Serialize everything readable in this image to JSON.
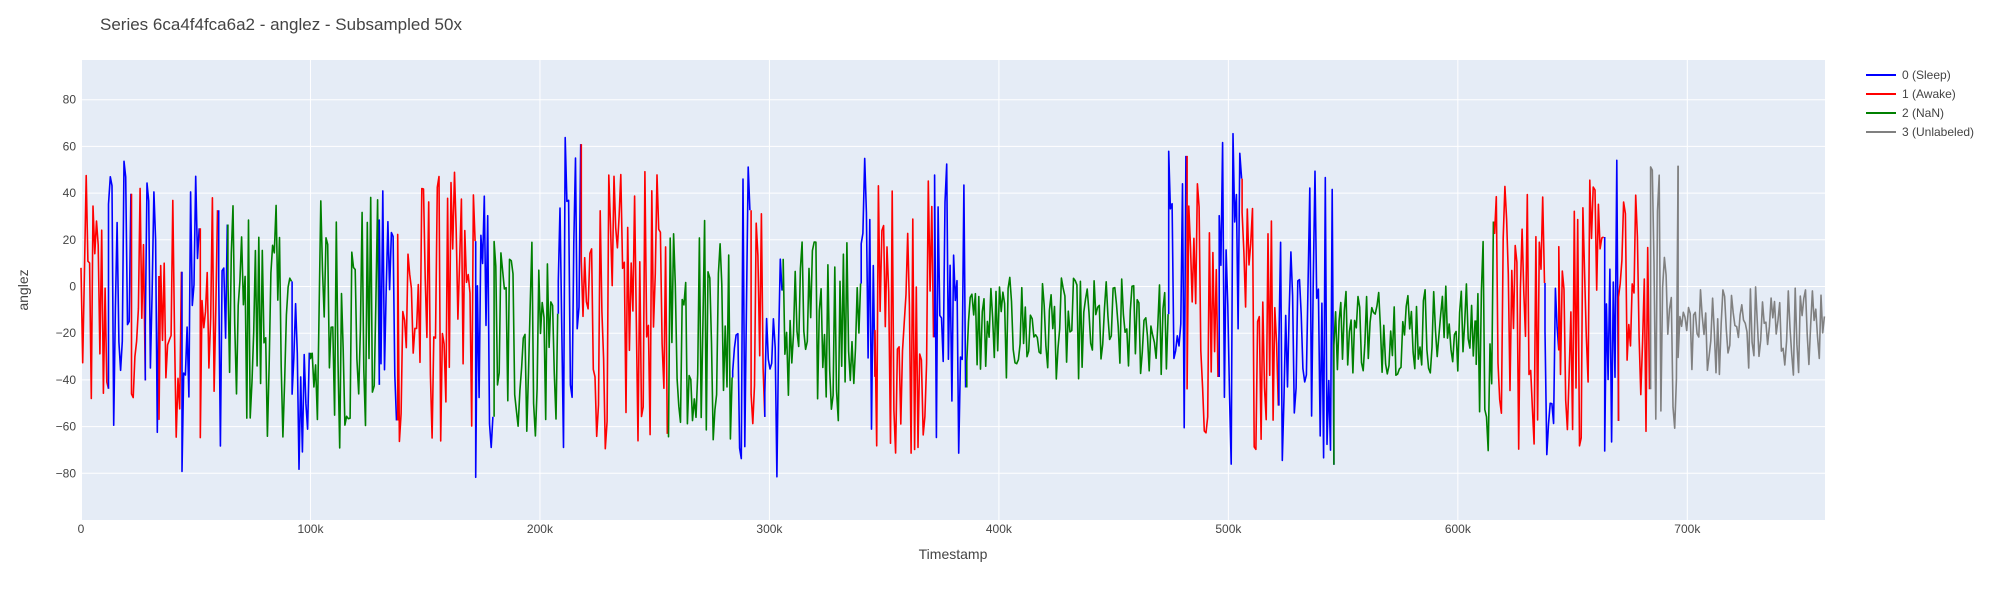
{
  "chart_data": {
    "type": "line",
    "title": "Series 6ca4f4fca6a2 - anglez - Subsampled 50x",
    "xlabel": "Timestamp",
    "ylabel": "anglez",
    "xlim": [
      0,
      760000
    ],
    "ylim": [
      -100,
      97
    ],
    "x_ticks": [
      {
        "value": 0,
        "label": "0"
      },
      {
        "value": 100000,
        "label": "100k"
      },
      {
        "value": 200000,
        "label": "200k"
      },
      {
        "value": 300000,
        "label": "300k"
      },
      {
        "value": 400000,
        "label": "400k"
      },
      {
        "value": 500000,
        "label": "500k"
      },
      {
        "value": 600000,
        "label": "600k"
      },
      {
        "value": 700000,
        "label": "700k"
      }
    ],
    "y_ticks": [
      {
        "value": 80,
        "label": "80"
      },
      {
        "value": 60,
        "label": "60"
      },
      {
        "value": 40,
        "label": "40"
      },
      {
        "value": 20,
        "label": "20"
      },
      {
        "value": 0,
        "label": "0"
      },
      {
        "value": -20,
        "label": "−20"
      },
      {
        "value": -40,
        "label": "−40"
      },
      {
        "value": -60,
        "label": "−60"
      },
      {
        "value": -80,
        "label": "−80"
      }
    ],
    "grid": true,
    "legend_position": "top-right",
    "series": [
      {
        "name": "0 (Sleep)",
        "color": "#0000ff"
      },
      {
        "name": "1 (Awake)",
        "color": "#ff0000"
      },
      {
        "name": "2 (NaN)",
        "color": "#008000"
      },
      {
        "name": "3 (Unlabeled)",
        "color": "#808080"
      }
    ],
    "segments": [
      {
        "series": 1,
        "x_start": 0,
        "x_end": 12000,
        "mean": -10,
        "amplitude": 58
      },
      {
        "series": 0,
        "x_start": 12000,
        "x_end": 22000,
        "mean": -5,
        "amplitude": 70
      },
      {
        "series": 1,
        "x_start": 22000,
        "x_end": 28000,
        "mean": -10,
        "amplitude": 55
      },
      {
        "series": 0,
        "x_start": 28000,
        "x_end": 34000,
        "mean": -8,
        "amplitude": 70
      },
      {
        "series": 1,
        "x_start": 34000,
        "x_end": 44000,
        "mean": -12,
        "amplitude": 55
      },
      {
        "series": 0,
        "x_start": 44000,
        "x_end": 52000,
        "mean": -5,
        "amplitude": 75
      },
      {
        "series": 1,
        "x_start": 52000,
        "x_end": 60000,
        "mean": -12,
        "amplitude": 55
      },
      {
        "series": 0,
        "x_start": 60000,
        "x_end": 64000,
        "mean": -10,
        "amplitude": 60
      },
      {
        "series": 2,
        "x_start": 64000,
        "x_end": 92000,
        "mean": -15,
        "amplitude": 50
      },
      {
        "series": 0,
        "x_start": 92000,
        "x_end": 100000,
        "mean": -45,
        "amplitude": 45
      },
      {
        "series": 2,
        "x_start": 100000,
        "x_end": 130000,
        "mean": -15,
        "amplitude": 55
      },
      {
        "series": 0,
        "x_start": 130000,
        "x_end": 138000,
        "mean": -5,
        "amplitude": 72
      },
      {
        "series": 1,
        "x_start": 138000,
        "x_end": 172000,
        "mean": -10,
        "amplitude": 60
      },
      {
        "series": 0,
        "x_start": 172000,
        "x_end": 180000,
        "mean": -20,
        "amplitude": 65
      },
      {
        "series": 2,
        "x_start": 180000,
        "x_end": 208000,
        "mean": -20,
        "amplitude": 48
      },
      {
        "series": 0,
        "x_start": 208000,
        "x_end": 218000,
        "mean": -5,
        "amplitude": 70
      },
      {
        "series": 1,
        "x_start": 218000,
        "x_end": 256000,
        "mean": -10,
        "amplitude": 60
      },
      {
        "series": 2,
        "x_start": 256000,
        "x_end": 284000,
        "mean": -15,
        "amplitude": 52
      },
      {
        "series": 0,
        "x_start": 284000,
        "x_end": 292000,
        "mean": -10,
        "amplitude": 70
      },
      {
        "series": 1,
        "x_start": 292000,
        "x_end": 298000,
        "mean": -15,
        "amplitude": 50
      },
      {
        "series": 0,
        "x_start": 298000,
        "x_end": 306000,
        "mean": -30,
        "amplitude": 55
      },
      {
        "series": 2,
        "x_start": 306000,
        "x_end": 340000,
        "mean": -18,
        "amplitude": 40
      },
      {
        "series": 0,
        "x_start": 340000,
        "x_end": 346000,
        "mean": -5,
        "amplitude": 70
      },
      {
        "series": 1,
        "x_start": 346000,
        "x_end": 372000,
        "mean": -12,
        "amplitude": 60
      },
      {
        "series": 0,
        "x_start": 372000,
        "x_end": 386000,
        "mean": -5,
        "amplitude": 70
      },
      {
        "series": 2,
        "x_start": 386000,
        "x_end": 474000,
        "mean": -18,
        "amplitude": 22
      },
      {
        "series": 0,
        "x_start": 474000,
        "x_end": 482000,
        "mean": -5,
        "amplitude": 72
      },
      {
        "series": 1,
        "x_start": 482000,
        "x_end": 496000,
        "mean": -12,
        "amplitude": 60
      },
      {
        "series": 0,
        "x_start": 496000,
        "x_end": 506000,
        "mean": -5,
        "amplitude": 75
      },
      {
        "series": 1,
        "x_start": 506000,
        "x_end": 522000,
        "mean": -12,
        "amplitude": 58
      },
      {
        "series": 0,
        "x_start": 522000,
        "x_end": 546000,
        "mean": -10,
        "amplitude": 68
      },
      {
        "series": 2,
        "x_start": 546000,
        "x_end": 608000,
        "mean": -18,
        "amplitude": 20
      },
      {
        "series": 2,
        "x_start": 608000,
        "x_end": 616000,
        "mean": -20,
        "amplitude": 55
      },
      {
        "series": 1,
        "x_start": 616000,
        "x_end": 638000,
        "mean": -12,
        "amplitude": 60
      },
      {
        "series": 0,
        "x_start": 638000,
        "x_end": 644000,
        "mean": -5,
        "amplitude": 70
      },
      {
        "series": 1,
        "x_start": 644000,
        "x_end": 664000,
        "mean": -12,
        "amplitude": 58
      },
      {
        "series": 0,
        "x_start": 664000,
        "x_end": 670000,
        "mean": -8,
        "amplitude": 70
      },
      {
        "series": 1,
        "x_start": 670000,
        "x_end": 684000,
        "mean": -12,
        "amplitude": 55
      },
      {
        "series": 3,
        "x_start": 684000,
        "x_end": 696000,
        "mean": -5,
        "amplitude": 60
      },
      {
        "series": 3,
        "x_start": 696000,
        "x_end": 760000,
        "mean": -18,
        "amplitude": 20
      }
    ]
  }
}
